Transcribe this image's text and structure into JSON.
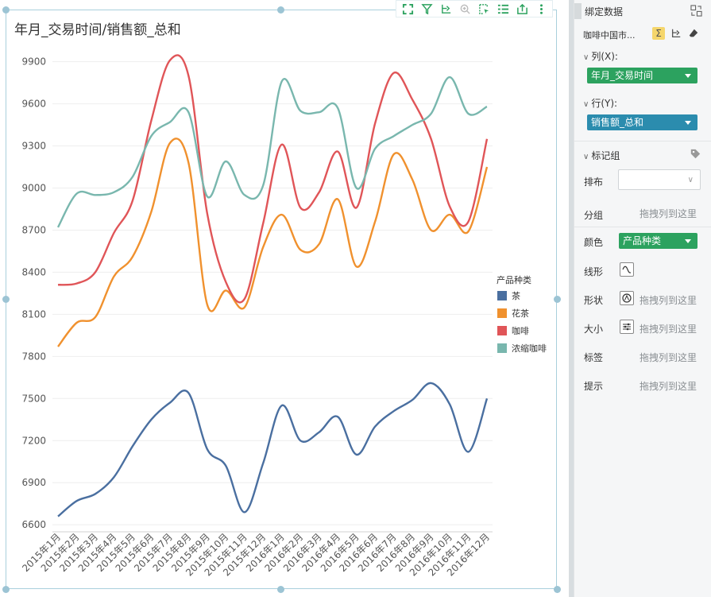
{
  "chart_title": "年月_交易时间/销售额_总和",
  "colors": {
    "tea": "#4a6fa0",
    "flower_tea": "#f0912e",
    "coffee": "#e05558",
    "espresso": "#79b7ae",
    "frame": "#a9cfdc",
    "toolbar_icon": "#2ca25f"
  },
  "toolbar": {
    "icons": [
      "expand-icon",
      "filter-icon",
      "drill-icon",
      "zoom-icon",
      "select-icon",
      "list-icon",
      "export-icon",
      "more-icon"
    ]
  },
  "chart_data": {
    "type": "line",
    "title": "年月_交易时间/销售额_总和",
    "xlabel": "",
    "ylabel": "",
    "ylim": [
      6550,
      10000
    ],
    "yticks": [
      6600,
      6900,
      7200,
      7500,
      7800,
      8100,
      8400,
      8700,
      9000,
      9300,
      9600,
      9900
    ],
    "categories": [
      "2015年1月",
      "2015年2月",
      "2015年3月",
      "2015年4月",
      "2015年5月",
      "2015年6月",
      "2015年7月",
      "2015年8月",
      "2015年9月",
      "2015年10月",
      "2015年11月",
      "2015年12月",
      "2016年1月",
      "2016年2月",
      "2016年3月",
      "2016年4月",
      "2016年5月",
      "2016年6月",
      "2016年7月",
      "2016年8月",
      "2016年9月",
      "2016年10月",
      "2016年11月",
      "2016年12月"
    ],
    "legend_title": "产品种类",
    "legend_position": "right",
    "grid": true,
    "series": [
      {
        "name": "茶",
        "color_key": "tea",
        "values": [
          6660,
          6770,
          6820,
          6940,
          7160,
          7350,
          7470,
          7540,
          7140,
          7020,
          6690,
          7040,
          7450,
          7200,
          7260,
          7370,
          7100,
          7300,
          7410,
          7490,
          7610,
          7460,
          7120,
          7500
        ]
      },
      {
        "name": "花茶",
        "color_key": "flower_tea",
        "values": [
          7870,
          8040,
          8080,
          8370,
          8510,
          8830,
          9320,
          9180,
          8170,
          8270,
          8150,
          8580,
          8810,
          8560,
          8600,
          8920,
          8440,
          8760,
          9240,
          9060,
          8700,
          8810,
          8690,
          9150
        ]
      },
      {
        "name": "咖啡",
        "color_key": "coffee",
        "values": [
          8310,
          8320,
          8400,
          8680,
          8910,
          9480,
          9910,
          9800,
          8820,
          8330,
          8210,
          8750,
          9310,
          8860,
          8970,
          9260,
          8860,
          9460,
          9820,
          9630,
          9350,
          8870,
          8760,
          9350
        ]
      },
      {
        "name": "浓缩咖啡",
        "color_key": "espresso",
        "values": [
          8720,
          8960,
          8950,
          8970,
          9080,
          9370,
          9470,
          9540,
          8940,
          9190,
          8950,
          9020,
          9760,
          9550,
          9540,
          9570,
          9000,
          9280,
          9370,
          9450,
          9530,
          9790,
          9530,
          9580
        ]
      }
    ]
  },
  "panel": {
    "title": "绑定数据",
    "dataset": "咖啡中国市...",
    "columns_label": "列(X):",
    "columns_value": "年月_交易时间",
    "rows_label": "行(Y):",
    "rows_value": "销售额_总和",
    "marks_label": "标记组",
    "layout_label": "排布",
    "group_label": "分组",
    "group_hint": "拖拽列到这里",
    "color_label": "颜色",
    "color_value": "产品种类",
    "line_label": "线形",
    "shape_label": "形状",
    "shape_hint": "拖拽列到这里",
    "size_label": "大小",
    "size_hint": "拖拽列到这里",
    "tag_label": "标签",
    "tag_hint": "拖拽列到这里",
    "tip_label": "提示",
    "tip_hint": "拖拽列到这里"
  }
}
